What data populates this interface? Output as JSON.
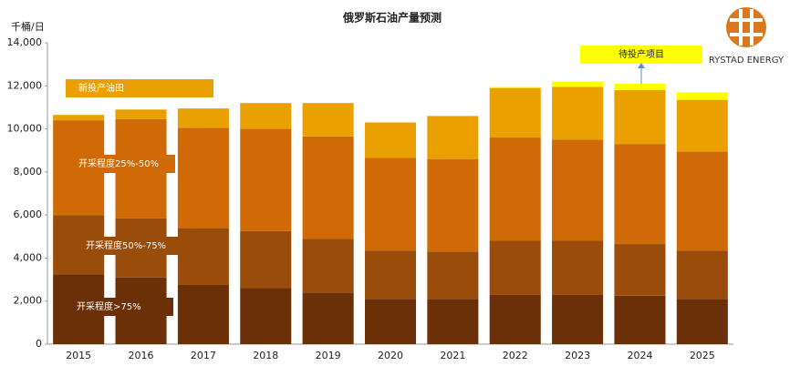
{
  "chart_data": {
    "type": "bar",
    "stacked": true,
    "title": "俄罗斯石油产量预测",
    "y_axis_label": "千桶/日",
    "logo": "RYSTAD ENERGY",
    "categories": [
      "2015",
      "2016",
      "2017",
      "2018",
      "2019",
      "2020",
      "2021",
      "2022",
      "2023",
      "2024",
      "2025"
    ],
    "series": [
      {
        "name": "开采程度>75%",
        "color": "#6b3008",
        "values": [
          3250,
          3100,
          2750,
          2600,
          2400,
          2100,
          2100,
          2300,
          2300,
          2250,
          2100
        ]
      },
      {
        "name": "开采程度50%-75%",
        "color": "#9a4d0a",
        "values": [
          2750,
          2750,
          2650,
          2650,
          2500,
          2250,
          2200,
          2500,
          2500,
          2400,
          2250
        ]
      },
      {
        "name": "开采程度25%-50%",
        "color": "#cf6a06",
        "values": [
          4400,
          4600,
          4650,
          4750,
          4750,
          4300,
          4300,
          4800,
          4700,
          4650,
          4600
        ]
      },
      {
        "name": "新投产油田",
        "color": "#eaa000",
        "values": [
          250,
          450,
          900,
          1200,
          1550,
          1650,
          2000,
          2300,
          2450,
          2500,
          2400
        ]
      },
      {
        "name": "待投产项目",
        "color": "#ffff00",
        "values": [
          0,
          0,
          0,
          0,
          0,
          0,
          0,
          50,
          250,
          300,
          350
        ]
      }
    ],
    "ylim": [
      0,
      14000
    ],
    "yticks": [
      0,
      {
        "value": 2000,
        "label": "2,000"
      },
      {
        "value": 4000,
        "label": "4,000"
      },
      {
        "value": 6000,
        "label": "6,000"
      },
      {
        "value": 8000,
        "label": "8,000"
      },
      {
        "value": 10000,
        "label": "10,000"
      },
      {
        "value": 12000,
        "label": "12,000"
      },
      {
        "value": 14000,
        "label": "14,000"
      }
    ],
    "grid": false
  }
}
